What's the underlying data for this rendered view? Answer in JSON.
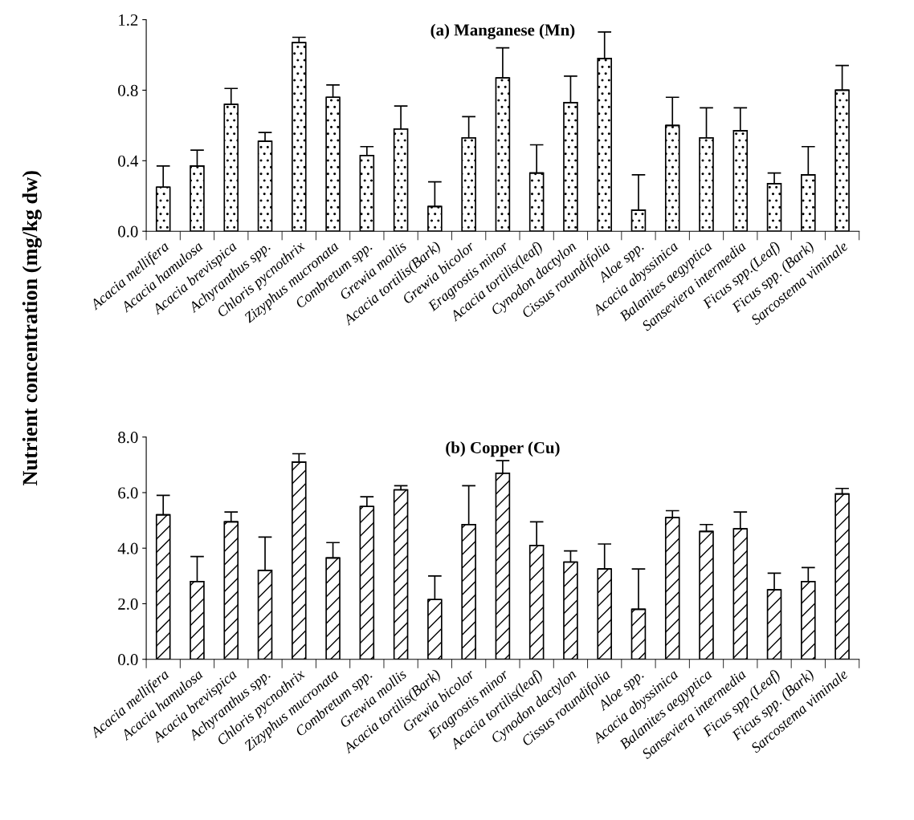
{
  "chart_data": [
    {
      "type": "bar",
      "title": "(a) Manganese (Mn)",
      "ylabel": "Nutrient concentration (mg/kg dw)",
      "categories": [
        "Acacia mellifera",
        "Acacia hamulosa",
        "Acacia brevispica",
        "Achyranthus spp.",
        "Chloris pycnothrix",
        "Zizyphus mucronata",
        "Combretum spp.",
        "Grewia mollis",
        "Acacia tortilis(Bark)",
        "Grewia bicolor",
        "Eragrostis minor",
        "Acacia tortilis(leaf)",
        "Cynodon dactylon",
        "Cissus rotundifolia",
        "Aloe spp.",
        "Acacia abyssinica",
        "Balanites aegyptica",
        "Sanseviera intermedia",
        "Ficus spp.(Leaf)",
        "Ficus spp. (Bark)",
        "Sarcostema viminale"
      ],
      "values": [
        0.25,
        0.37,
        0.72,
        0.51,
        1.07,
        0.76,
        0.43,
        0.58,
        0.14,
        0.53,
        0.87,
        0.33,
        0.73,
        0.98,
        0.12,
        0.6,
        0.53,
        0.57,
        0.27,
        0.32,
        0.8
      ],
      "errors": [
        [
          0.25,
          0.37
        ],
        [
          0.37,
          0.46
        ],
        [
          0.72,
          0.81
        ],
        [
          0.51,
          0.56
        ],
        [
          1.07,
          1.1
        ],
        [
          0.76,
          0.83
        ],
        [
          0.43,
          0.48
        ],
        [
          0.58,
          0.71
        ],
        [
          0.14,
          0.28
        ],
        [
          0.53,
          0.65
        ],
        [
          0.87,
          1.04
        ],
        [
          0.33,
          0.49
        ],
        [
          0.73,
          0.88
        ],
        [
          0.98,
          1.13
        ],
        [
          0.12,
          0.32
        ],
        [
          0.6,
          0.76
        ],
        [
          0.53,
          0.7
        ],
        [
          0.57,
          0.7
        ],
        [
          0.27,
          0.33
        ],
        [
          0.32,
          0.48
        ],
        [
          0.8,
          0.94
        ]
      ],
      "color": "#ffffff",
      "ylim": [
        0,
        1.2
      ],
      "yticks": [
        {
          "value": 0,
          "label": "0.0"
        },
        {
          "value": 0.4,
          "label": "0.4"
        },
        {
          "value": 0.8,
          "label": "0.8"
        },
        {
          "value": 1.2,
          "label": "1.2"
        }
      ],
      "grid": false
    },
    {
      "type": "bar",
      "title": "(b) Copper (Cu)",
      "categories": [
        "Acacia mellifera",
        "Acacia hamulosa",
        "Acacia brevispica",
        "Achyranthus spp.",
        "Chloris pycnothrix",
        "Zizyphus mucronata",
        "Combretum spp.",
        "Grewia mollis",
        "Acacia tortilis(Bark)",
        "Grewia bicolor",
        "Eragrostis minor",
        "Acacia tortilis(leaf)",
        "Cynodon dactylon",
        "Cissus rotundifolia",
        "Aloe spp.",
        "Acacia abyssinica",
        "Balanites aegyptica",
        "Sanseviera intermedia",
        "Ficus spp.(Leaf)",
        "Ficus spp. (Bark)",
        "Sarcostema viminale"
      ],
      "values": [
        5.2,
        2.8,
        4.95,
        3.2,
        7.1,
        3.65,
        5.5,
        6.1,
        2.15,
        4.85,
        6.7,
        4.1,
        3.5,
        3.25,
        1.8,
        5.1,
        4.6,
        4.7,
        2.5,
        2.8,
        5.95
      ],
      "errors": [
        [
          5.2,
          5.9
        ],
        [
          2.8,
          3.7
        ],
        [
          4.95,
          5.3
        ],
        [
          3.2,
          4.4
        ],
        [
          7.1,
          7.4
        ],
        [
          3.65,
          4.2
        ],
        [
          5.5,
          5.85
        ],
        [
          6.1,
          6.25
        ],
        [
          2.15,
          3.0
        ],
        [
          4.85,
          6.25
        ],
        [
          6.7,
          7.15
        ],
        [
          4.1,
          4.95
        ],
        [
          3.5,
          3.9
        ],
        [
          3.25,
          4.15
        ],
        [
          1.8,
          3.25
        ],
        [
          5.1,
          5.35
        ],
        [
          4.6,
          4.85
        ],
        [
          4.7,
          5.3
        ],
        [
          2.5,
          3.1
        ],
        [
          2.8,
          3.3
        ],
        [
          5.95,
          6.15
        ]
      ],
      "color": "#ffffff",
      "ylim": [
        0,
        8
      ],
      "yticks": [
        {
          "value": 0,
          "label": "0.0"
        },
        {
          "value": 2,
          "label": "2.0"
        },
        {
          "value": 4,
          "label": "4.0"
        },
        {
          "value": 6,
          "label": "6.0"
        },
        {
          "value": 8,
          "label": "8.0"
        }
      ],
      "grid": false
    }
  ]
}
